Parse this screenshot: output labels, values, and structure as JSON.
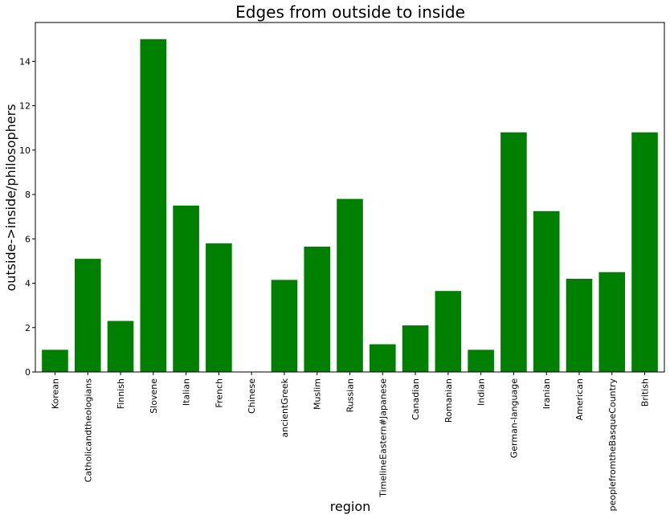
{
  "chart_data": {
    "type": "bar",
    "title": "Edges from outside to inside",
    "xlabel": "region",
    "ylabel": "outside->inside/philosophers",
    "categories": [
      "Korean",
      "Catholicandtheologians",
      "Finnish",
      "Slovene",
      "Italian",
      "French",
      "Chinese",
      "ancientGreek",
      "Muslim",
      "Russian",
      "TimelineEastern#Japanese",
      "Canadian",
      "Romanian",
      "Indian",
      "German-language",
      "Iranian",
      "American",
      "peoplefromtheBasqueCountry",
      "British"
    ],
    "values": [
      1.0,
      5.1,
      2.3,
      15.0,
      7.5,
      5.8,
      0.0,
      4.15,
      5.65,
      7.8,
      1.25,
      2.1,
      3.65,
      1.0,
      10.8,
      7.25,
      4.2,
      4.5,
      10.8
    ],
    "ylim": [
      0,
      15.75
    ],
    "yticks": [
      0,
      2,
      4,
      6,
      8,
      10,
      12,
      14
    ],
    "bar_color": "#008000",
    "grid": false
  }
}
